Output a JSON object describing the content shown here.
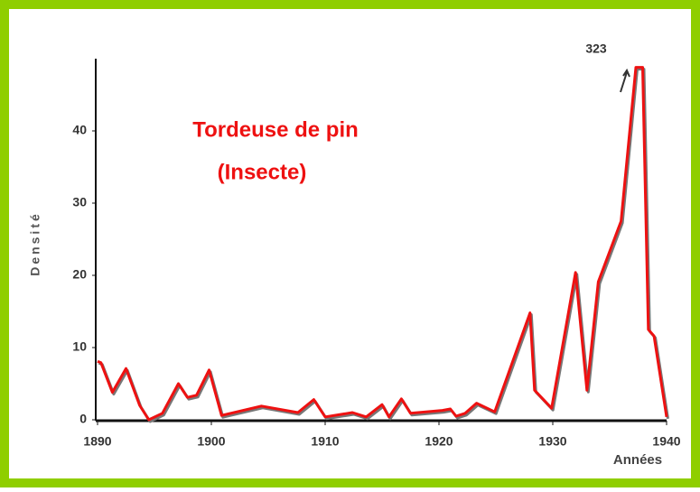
{
  "chart_data": {
    "type": "line",
    "title": "Tordeuse de pin",
    "subtitle": "(Insecte)",
    "y_label": "Densité",
    "x_label": "Années",
    "annotation": "323",
    "xlim": [
      1890,
      1940
    ],
    "ylim": [
      0,
      50
    ],
    "xticks": [
      1890,
      1900,
      1910,
      1920,
      1930,
      1940
    ],
    "yticks": [
      0,
      10,
      20,
      30,
      40
    ],
    "series": [
      {
        "color": "#ee1111",
        "x": [
          1890,
          1890.3,
          1891.3,
          1892.5,
          1893.7,
          1894.5,
          1895.7,
          1897.1,
          1897.9,
          1898.7,
          1899.8,
          1900.9,
          1904.4,
          1907.6,
          1909,
          1910,
          1912.4,
          1913.6,
          1915,
          1915.6,
          1916.7,
          1917.5,
          1920.3,
          1921,
          1921.5,
          1922.3,
          1923.3,
          1924.9,
          1928,
          1928.4,
          1929.9,
          1932,
          1933,
          1934,
          1936,
          1937.3,
          1937.9,
          1938.4,
          1938.9,
          1940
        ],
        "values": [
          8.1,
          7.9,
          3.8,
          7.1,
          2,
          0,
          0.9,
          5,
          3.1,
          3.4,
          6.9,
          0.6,
          1.9,
          1,
          2.8,
          0.4,
          1,
          0.4,
          2.1,
          0.4,
          2.9,
          0.9,
          1.3,
          1.5,
          0.5,
          0.9,
          2.3,
          1.1,
          14.8,
          4.1,
          1.6,
          20.4,
          4.1,
          19.1,
          27.5,
          48.8,
          48.8,
          12.5,
          11.6,
          0.4
        ]
      }
    ]
  }
}
